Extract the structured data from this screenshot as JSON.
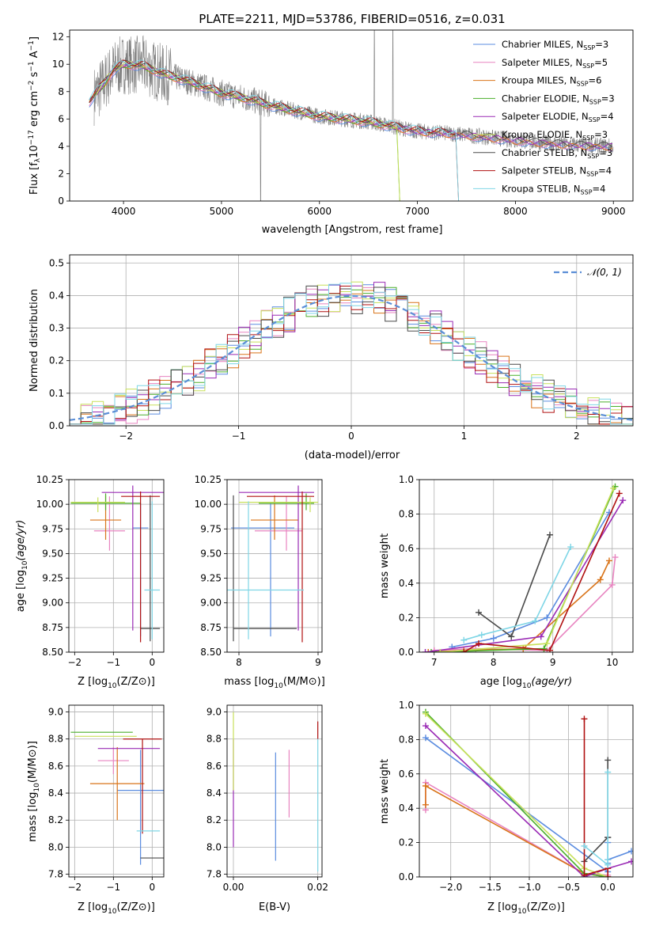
{
  "figure_title": "PLATE=2211, MJD=53786, FIBERID=0516, z=0.031",
  "colors": {
    "Chabrier MILES": "#5b8ce0",
    "Salpeter MILES": "#e884c0",
    "Kroupa MILES": "#d9741a",
    "Chabrier ELODIE": "#4caf2c",
    "Salpeter ELODIE": "#9a2bb5",
    "Kroupa ELODIE": "#c8e05a",
    "Chabrier STELIB": "#4a4a4a",
    "Salpeter STELIB": "#b01010",
    "Kroupa STELIB": "#7fd6e6",
    "normal": "#5b8ed6",
    "data": "#808080"
  },
  "chart_data": [
    {
      "id": "spectrum",
      "type": "line",
      "title": "PLATE=2211, MJD=53786, FIBERID=0516, z=0.031",
      "xlabel": "wavelength [Angstrom, rest frame]",
      "ylabel": "Flux [f",
      "ylabel_parts": [
        "Flux [f",
        "λ",
        "10",
        "−17",
        " erg cm",
        "−2",
        " s",
        "−1",
        " A",
        "−1",
        "]"
      ],
      "xlim": [
        3450,
        9200
      ],
      "ylim": [
        0,
        12.5
      ],
      "xticks": [
        4000,
        5000,
        6000,
        7000,
        8000,
        9000
      ],
      "yticks": [
        0,
        2,
        4,
        6,
        8,
        10,
        12
      ],
      "legend_position": "upper right",
      "legend": [
        {
          "label": "Chabrier MILES, N",
          "sub": "SSP",
          "suffix": "=3"
        },
        {
          "label": "Salpeter MILES, N",
          "sub": "SSP",
          "suffix": "=5"
        },
        {
          "label": "Kroupa MILES, N",
          "sub": "SSP",
          "suffix": "=6"
        },
        {
          "label": "Chabrier ELODIE, N",
          "sub": "SSP",
          "suffix": "=3"
        },
        {
          "label": "Salpeter ELODIE, N",
          "sub": "SSP",
          "suffix": "=4"
        },
        {
          "label": "Kroupa ELODIE, N",
          "sub": "SSP",
          "suffix": "=3"
        },
        {
          "label": "Chabrier STELIB, N",
          "sub": "SSP",
          "suffix": "=3"
        },
        {
          "label": "Salpeter STELIB, N",
          "sub": "SSP",
          "suffix": "=4"
        },
        {
          "label": "Kroupa STELIB, N",
          "sub": "SSP",
          "suffix": "=4"
        }
      ],
      "data_continuum": [
        [
          3700,
          7.7
        ],
        [
          3800,
          8.6
        ],
        [
          3900,
          9.6
        ],
        [
          4000,
          10.0
        ],
        [
          4200,
          9.9
        ],
        [
          4400,
          9.3
        ],
        [
          4600,
          8.9
        ],
        [
          4800,
          8.4
        ],
        [
          5000,
          7.9
        ],
        [
          5200,
          7.6
        ],
        [
          5500,
          7.0
        ],
        [
          6000,
          6.2
        ],
        [
          6500,
          5.8
        ],
        [
          7000,
          5.1
        ],
        [
          7400,
          4.9
        ],
        [
          7800,
          4.6
        ],
        [
          8200,
          4.3
        ],
        [
          8600,
          4.1
        ],
        [
          9000,
          4.0
        ]
      ]
    },
    {
      "id": "residuals",
      "type": "line",
      "xlabel": "(data-model)/error",
      "ylabel": "Normed distribution",
      "xlim": [
        -2.5,
        2.5
      ],
      "ylim": [
        0,
        0.525
      ],
      "xticks": [
        -2,
        -1,
        0,
        1,
        2
      ],
      "yticks": [
        0.0,
        0.1,
        0.2,
        0.3,
        0.4,
        0.5
      ],
      "grid": true,
      "legend_position": "upper right",
      "legend": [
        "𝒩(0, 1)"
      ],
      "bin_width": 0.1
    },
    {
      "id": "age_vs_Z",
      "type": "scatter",
      "xlabel": "Z [log",
      "ylabel": "age  [log",
      "xlim": [
        -2.15,
        0.3
      ],
      "ylim": [
        8.5,
        10.25
      ],
      "xticks": [
        -2,
        -1,
        0
      ],
      "yticks": [
        8.5,
        8.75,
        9.0,
        9.25,
        9.5,
        9.75,
        10.0,
        10.25
      ],
      "grid": true,
      "points": [
        {
          "model": "Chabrier MILES",
          "x": -0.3,
          "y": 9.76,
          "xerr": [
            0.2,
            0.2
          ],
          "yerr": [
            1.1,
            0.25
          ]
        },
        {
          "model": "Salpeter MILES",
          "x": -1.1,
          "y": 9.73,
          "xerr": [
            0.4,
            0.4
          ],
          "yerr": [
            0.2,
            0.35
          ]
        },
        {
          "model": "Kroupa MILES",
          "x": -1.2,
          "y": 9.84,
          "xerr": [
            0.4,
            0.4
          ],
          "yerr": [
            0.2,
            0.25
          ]
        },
        {
          "model": "Chabrier ELODIE",
          "x": -1.2,
          "y": 10.01,
          "xerr": [
            0.9,
            0.9
          ],
          "yerr": [
            0.07,
            0.1
          ]
        },
        {
          "model": "Salpeter ELODIE",
          "x": -0.5,
          "y": 10.12,
          "xerr": [
            0.8,
            0.8
          ],
          "yerr": [
            1.4,
            0.07
          ]
        },
        {
          "model": "Kroupa ELODIE",
          "x": -1.4,
          "y": 10.02,
          "xerr": [
            0.7,
            0.7
          ],
          "yerr": [
            0.1,
            0.05
          ]
        },
        {
          "model": "Chabrier STELIB",
          "x": -0.05,
          "y": 8.74,
          "xerr": [
            0.25,
            0.25
          ],
          "yerr": [
            0.13,
            1.35
          ]
        },
        {
          "model": "Salpeter STELIB",
          "x": -0.3,
          "y": 10.08,
          "xerr": [
            0.5,
            0.5
          ],
          "yerr": [
            1.48,
            0.05
          ]
        },
        {
          "model": "Kroupa STELIB",
          "x": 0.0,
          "y": 9.13,
          "xerr": [
            0.2,
            0.2
          ],
          "yerr": [
            0.5,
            0.9
          ]
        }
      ]
    },
    {
      "id": "age_vs_mass",
      "type": "scatter",
      "xlabel": "mass [log",
      "xlim": [
        7.85,
        9.05
      ],
      "ylim": [
        8.5,
        10.25
      ],
      "xticks": [
        8,
        9
      ],
      "yticks": [
        8.5,
        8.75,
        9.0,
        9.25,
        9.5,
        9.75,
        10.0,
        10.25
      ],
      "grid": true,
      "points": [
        {
          "model": "Chabrier MILES",
          "x": 8.4,
          "y": 9.76,
          "xerr": [
            0.5,
            0.3
          ],
          "yerr": [
            1.1,
            0.25
          ]
        },
        {
          "model": "Salpeter MILES",
          "x": 8.6,
          "y": 9.73,
          "xerr": [
            0.4,
            0.2
          ],
          "yerr": [
            0.2,
            0.35
          ]
        },
        {
          "model": "Kroupa MILES",
          "x": 8.45,
          "y": 9.84,
          "xerr": [
            0.3,
            0.3
          ],
          "yerr": [
            0.2,
            0.25
          ]
        },
        {
          "model": "Chabrier ELODIE",
          "x": 8.85,
          "y": 10.01,
          "xerr": [
            0.6,
            0.1
          ],
          "yerr": [
            0.07,
            0.1
          ]
        },
        {
          "model": "Salpeter ELODIE",
          "x": 8.75,
          "y": 10.12,
          "xerr": [
            0.75,
            0.2
          ],
          "yerr": [
            1.4,
            0.07
          ]
        },
        {
          "model": "Kroupa ELODIE",
          "x": 8.9,
          "y": 10.02,
          "xerr": [
            0.9,
            0.1
          ],
          "yerr": [
            0.1,
            0.05
          ]
        },
        {
          "model": "Chabrier STELIB",
          "x": 7.93,
          "y": 8.74,
          "xerr": [
            0.0,
            0.8
          ],
          "yerr": [
            0.13,
            1.35
          ]
        },
        {
          "model": "Salpeter STELIB",
          "x": 8.8,
          "y": 10.08,
          "xerr": [
            0.7,
            0.15
          ],
          "yerr": [
            1.48,
            0.05
          ]
        },
        {
          "model": "Kroupa STELIB",
          "x": 8.12,
          "y": 9.13,
          "xerr": [
            0.3,
            0.7
          ],
          "yerr": [
            0.5,
            0.9
          ]
        }
      ]
    },
    {
      "id": "weight_vs_age",
      "type": "line",
      "xlabel": "age  [log",
      "ylabel": "mass weight",
      "xlim": [
        6.75,
        10.35
      ],
      "ylim": [
        0,
        1.0
      ],
      "xticks": [
        7,
        8,
        9,
        10
      ],
      "yticks": [
        0.0,
        0.2,
        0.4,
        0.6,
        0.8,
        1.0
      ],
      "grid": true,
      "series": [
        {
          "model": "Chabrier MILES",
          "x": [
            7.3,
            8.0,
            8.9,
            9.95
          ],
          "y": [
            0.03,
            0.08,
            0.2,
            0.81
          ]
        },
        {
          "model": "Salpeter MILES",
          "x": [
            7.0,
            7.7,
            8.9,
            10.0,
            10.05
          ],
          "y": [
            0.01,
            0.02,
            0.01,
            0.39,
            0.55
          ]
        },
        {
          "model": "Kroupa MILES",
          "x": [
            6.9,
            7.5,
            8.5,
            9.8,
            9.95
          ],
          "y": [
            0.0,
            0.01,
            0.02,
            0.42,
            0.53
          ]
        },
        {
          "model": "Chabrier ELODIE",
          "x": [
            6.95,
            8.85,
            10.05
          ],
          "y": [
            0.0,
            0.02,
            0.96
          ]
        },
        {
          "model": "Salpeter ELODIE",
          "x": [
            6.85,
            8.8,
            10.18
          ],
          "y": [
            0.0,
            0.09,
            0.88
          ]
        },
        {
          "model": "Kroupa ELODIE",
          "x": [
            7.1,
            8.9,
            10.02
          ],
          "y": [
            0.0,
            0.05,
            0.95
          ]
        },
        {
          "model": "Chabrier STELIB",
          "x": [
            7.75,
            8.3,
            8.95
          ],
          "y": [
            0.23,
            0.09,
            0.68
          ]
        },
        {
          "model": "Salpeter STELIB",
          "x": [
            7.5,
            7.75,
            8.95,
            10.12
          ],
          "y": [
            0.0,
            0.05,
            0.01,
            0.92
          ]
        },
        {
          "model": "Kroupa STELIB",
          "x": [
            7.5,
            7.8,
            8.7,
            9.3
          ],
          "y": [
            0.07,
            0.1,
            0.18,
            0.61
          ]
        }
      ]
    },
    {
      "id": "mass_vs_Z",
      "type": "scatter",
      "xlabel": "Z [log",
      "ylabel": "mass [log",
      "xlim": [
        -2.15,
        0.3
      ],
      "ylim": [
        7.78,
        9.05
      ],
      "xticks": [
        -2,
        -1,
        0
      ],
      "yticks": [
        7.8,
        8.0,
        8.2,
        8.4,
        8.6,
        8.8,
        9.0
      ],
      "grid": true,
      "points": [
        {
          "model": "Chabrier MILES",
          "x": -0.3,
          "y": 8.42,
          "xerr": [
            0.6,
            0.6
          ],
          "yerr": [
            0.55,
            0.3
          ]
        },
        {
          "model": "Salpeter MILES",
          "x": -1.0,
          "y": 8.64,
          "xerr": [
            0.4,
            0.4
          ],
          "yerr": [
            0.1,
            0.1
          ]
        },
        {
          "model": "Kroupa MILES",
          "x": -0.9,
          "y": 8.47,
          "xerr": [
            0.7,
            0.7
          ],
          "yerr": [
            0.27,
            0.27
          ]
        },
        {
          "model": "Chabrier ELODIE",
          "x": -1.3,
          "y": 8.85,
          "xerr": [
            0.8,
            0.8
          ],
          "yerr": [
            0.0,
            0.0
          ]
        },
        {
          "model": "Salpeter ELODIE",
          "x": -0.6,
          "y": 8.73,
          "xerr": [
            0.8,
            0.8
          ],
          "yerr": [
            0.0,
            0.0
          ]
        },
        {
          "model": "Kroupa ELODIE",
          "x": -1.2,
          "y": 8.82,
          "xerr": [
            0.8,
            0.8
          ],
          "yerr": [
            0.0,
            0.0
          ]
        },
        {
          "model": "Chabrier STELIB",
          "x": 0.0,
          "y": 7.92,
          "xerr": [
            0.3,
            0.3
          ],
          "yerr": [
            0.0,
            0.0
          ]
        },
        {
          "model": "Salpeter STELIB",
          "x": -0.25,
          "y": 8.8,
          "xerr": [
            0.5,
            0.5
          ],
          "yerr": [
            0.7,
            0.0
          ]
        },
        {
          "model": "Kroupa STELIB",
          "x": -0.1,
          "y": 8.12,
          "xerr": [
            0.3,
            0.3
          ],
          "yerr": [
            0.0,
            0.0
          ]
        }
      ]
    },
    {
      "id": "mass_vs_ebv",
      "type": "scatter",
      "xlabel": "E(B-V)",
      "xlim": [
        -0.0015,
        0.021
      ],
      "ylim": [
        7.78,
        9.05
      ],
      "xticks": [
        0.0,
        0.02
      ],
      "yticks": [
        7.8,
        8.0,
        8.2,
        8.4,
        8.6,
        8.8,
        9.0
      ],
      "grid": true,
      "points": [
        {
          "model": "Chabrier MILES",
          "x": 0.01,
          "y": 8.25,
          "yerr": [
            0.35,
            0.45
          ]
        },
        {
          "model": "Salpeter MILES",
          "x": 0.0132,
          "y": 8.47,
          "yerr": [
            0.25,
            0.25
          ]
        },
        {
          "model": "Salpeter ELODIE",
          "x": 0.0,
          "y": 8.5,
          "yerr": [
            0.5,
            0.3
          ]
        },
        {
          "model": "Kroupa ELODIE",
          "x": 0.0,
          "y": 8.72,
          "yerr": [
            0.3,
            0.28
          ]
        },
        {
          "model": "Salpeter STELIB",
          "x": 0.02,
          "y": 8.85,
          "yerr": [
            0.05,
            0.08
          ]
        },
        {
          "model": "Kroupa STELIB",
          "x": 0.02,
          "y": 8.12,
          "yerr": [
            0.3,
            0.68
          ]
        }
      ]
    },
    {
      "id": "weight_vs_Z",
      "type": "line",
      "xlabel": "Z [log",
      "ylabel": "mass weight",
      "xlim": [
        -2.4,
        0.32
      ],
      "ylim": [
        0,
        1.0
      ],
      "xticks": [
        -2.0,
        -1.5,
        -1.0,
        -0.5,
        0.0
      ],
      "yticks": [
        0.0,
        0.2,
        0.4,
        0.6,
        0.8,
        1.0
      ],
      "grid": true,
      "series": [
        {
          "model": "Chabrier MILES",
          "x": [
            -2.32,
            0.0,
            0.0,
            0.0,
            0.0,
            0.3
          ],
          "y": [
            0.81,
            0.03,
            0.08,
            0.2,
            0.1,
            0.15
          ]
        },
        {
          "model": "Salpeter MILES",
          "x": [
            -2.32,
            -2.32,
            -0.3,
            0.0
          ],
          "y": [
            0.39,
            0.55,
            0.02,
            0.01
          ]
        },
        {
          "model": "Kroupa MILES",
          "x": [
            -2.32,
            -2.32,
            -0.3,
            0.0
          ],
          "y": [
            0.42,
            0.53,
            0.02,
            0.0
          ]
        },
        {
          "model": "Chabrier ELODIE",
          "x": [
            -2.32,
            -0.3,
            0.0
          ],
          "y": [
            0.96,
            0.02,
            0.0
          ]
        },
        {
          "model": "Salpeter ELODIE",
          "x": [
            -2.32,
            -0.3,
            0.0,
            0.3
          ],
          "y": [
            0.88,
            0.0,
            0.05,
            0.09
          ]
        },
        {
          "model": "Kroupa ELODIE",
          "x": [
            -2.32,
            -0.3,
            0.0
          ],
          "y": [
            0.95,
            0.05,
            0.0
          ]
        },
        {
          "model": "Chabrier STELIB",
          "x": [
            -0.3,
            0.0,
            0.0,
            0.0
          ],
          "y": [
            0.09,
            0.23,
            0.68,
            0.23
          ]
        },
        {
          "model": "Salpeter STELIB",
          "x": [
            -0.3,
            -0.3,
            0.0,
            0.0
          ],
          "y": [
            0.92,
            0.01,
            0.05,
            0.0
          ]
        },
        {
          "model": "Kroupa STELIB",
          "x": [
            -0.3,
            0.0,
            0.0,
            0.0
          ],
          "y": [
            0.18,
            0.07,
            0.61,
            0.1
          ]
        }
      ]
    }
  ]
}
